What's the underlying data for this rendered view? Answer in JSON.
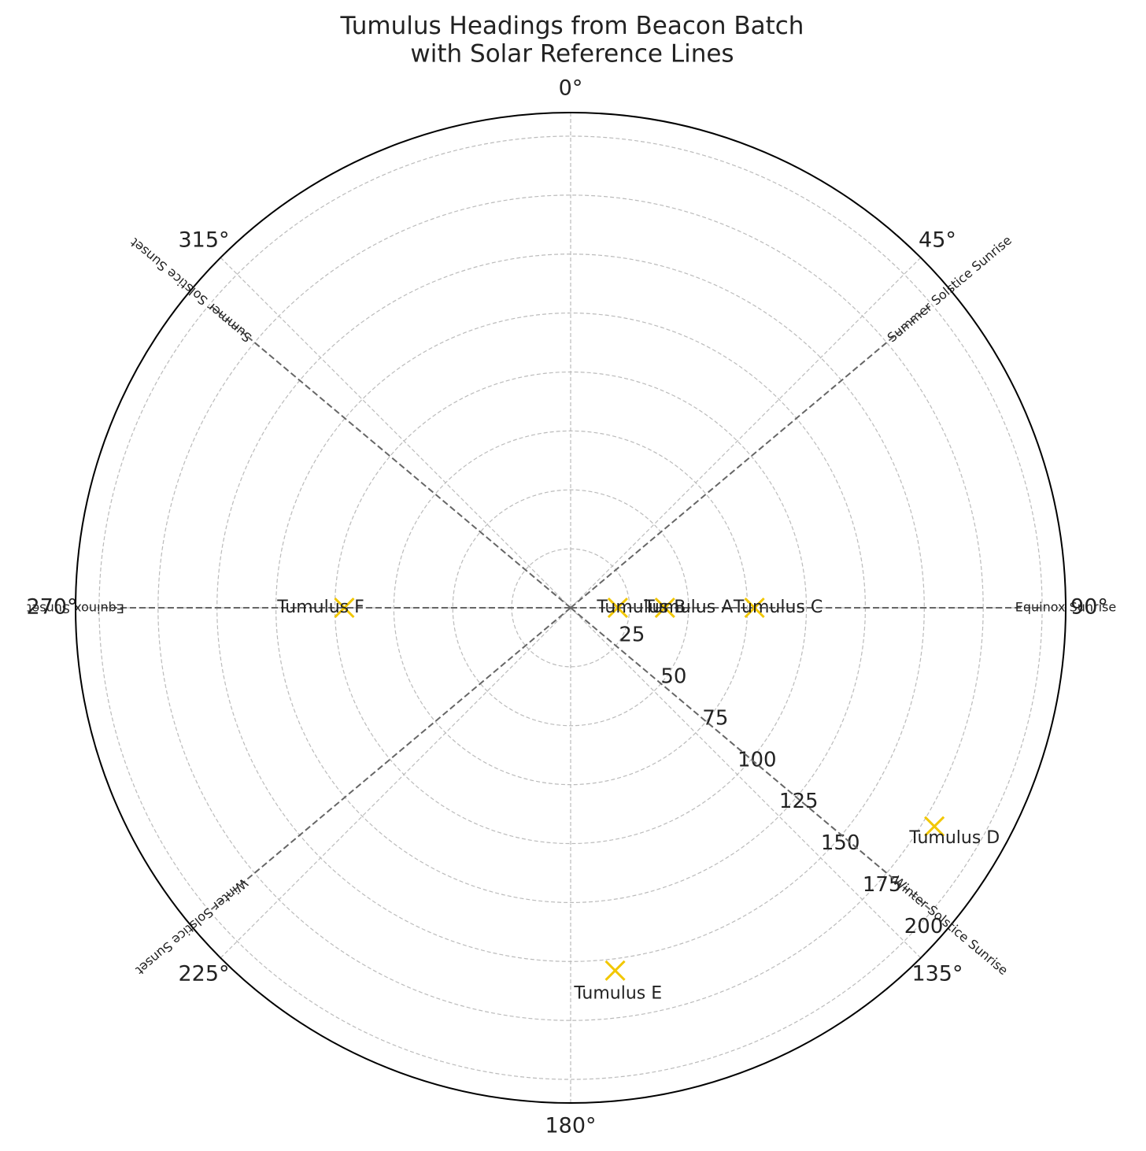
{
  "chart_data": {
    "type": "polar",
    "title": "Tumulus Headings from Beacon Batch\nwith Solar Reference Lines",
    "theta_zero": "N",
    "theta_direction": "clockwise",
    "xticks": [
      {
        "value": 0,
        "label": "0°"
      },
      {
        "value": 45,
        "label": "45°"
      },
      {
        "value": 90,
        "label": "90°"
      },
      {
        "value": 135,
        "label": "135°"
      },
      {
        "value": 180,
        "label": "180°"
      },
      {
        "value": 225,
        "label": "225°"
      },
      {
        "value": 270,
        "label": "270°"
      },
      {
        "value": 315,
        "label": "315°"
      }
    ],
    "ylim": [
      0,
      210
    ],
    "yticks": [
      25,
      50,
      75,
      100,
      125,
      150,
      175,
      200
    ],
    "grid": true,
    "reference_lines": [
      {
        "name": "Summer Solstice Sunrise",
        "theta": 50,
        "r": 200
      },
      {
        "name": "Equinox Sunrise",
        "theta": 90,
        "r": 200
      },
      {
        "name": "Winter Solstice Sunrise",
        "theta": 130,
        "r": 200
      },
      {
        "name": "Winter Solstice Sunset",
        "theta": 230,
        "r": 200
      },
      {
        "name": "Equinox Sunset",
        "theta": 270,
        "r": 200
      },
      {
        "name": "Summer Solstice Sunset",
        "theta": 310,
        "r": 200
      }
    ],
    "reference_color": "#666666",
    "points": [
      {
        "label": "Tumulus A",
        "theta": 90,
        "r": 40
      },
      {
        "label": "Tumulus B",
        "theta": 90,
        "r": 20
      },
      {
        "label": "Tumulus C",
        "theta": 90,
        "r": 78
      },
      {
        "label": "Tumulus D",
        "theta": 121,
        "r": 180
      },
      {
        "label": "Tumulus E",
        "theta": 173,
        "r": 155
      },
      {
        "label": "Tumulus F",
        "theta": 270,
        "r": 96
      }
    ],
    "marker_color": "#f2c700"
  }
}
